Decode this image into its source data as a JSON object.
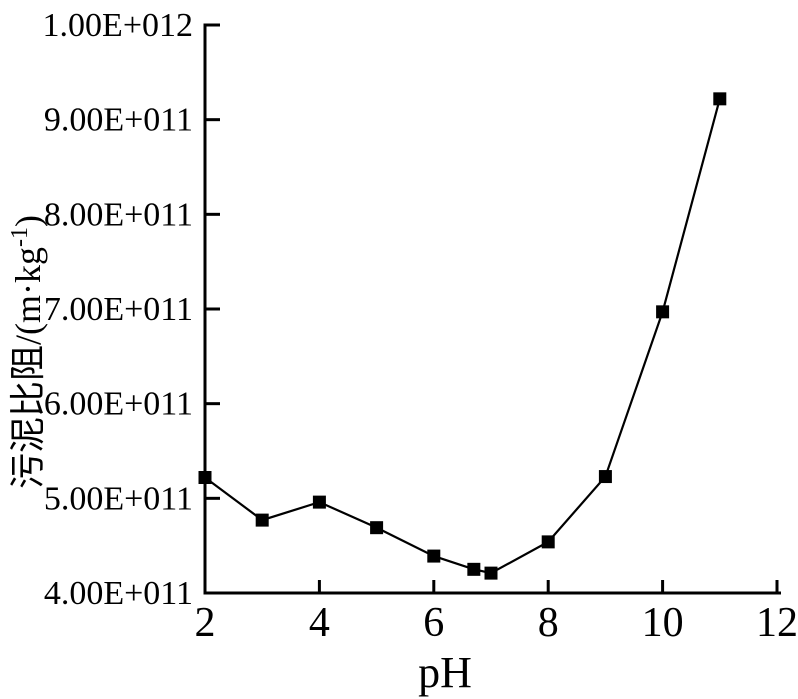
{
  "page": {
    "background": "#ffffff"
  },
  "chart": {
    "ink": "#000000",
    "ylabel_prefix": "污泥比阻/(m·kg",
    "ylabel_sup": "-1",
    "ylabel_suffix": ")"
  },
  "chart_data": {
    "type": "line",
    "title": "",
    "xlabel": "pH",
    "ylabel": "污泥比阻/(m·kg⁻¹)",
    "series": [
      {
        "name": "污泥比阻",
        "marker": "filled-square",
        "line_color": "#000000",
        "marker_color": "#000000",
        "x": [
          2,
          3,
          4,
          5,
          6,
          6.7,
          7,
          8,
          9,
          10,
          11
        ],
        "y": [
          522000000000.0,
          477000000000.0,
          496000000000.0,
          469000000000.0,
          439000000000.0,
          425000000000.0,
          421000000000.0,
          454000000000.0,
          523000000000.0,
          697000000000.0,
          922000000000.0
        ]
      }
    ],
    "xlim": [
      2,
      12
    ],
    "ylim": [
      400000000000.0,
      1000000000000.0
    ],
    "x_ticks": [
      2,
      4,
      6,
      8,
      10,
      12
    ],
    "x_tick_labels": [
      "2",
      "4",
      "6",
      "8",
      "10",
      "12"
    ],
    "y_ticks": [
      400000000000.0,
      500000000000.0,
      600000000000.0,
      700000000000.0,
      800000000000.0,
      900000000000.0,
      1000000000000.0
    ],
    "y_tick_labels": [
      "4.00E+011",
      "5.00E+011",
      "6.00E+011",
      "7.00E+011",
      "8.00E+011",
      "9.00E+011",
      "1.00E+012"
    ],
    "grid": false,
    "legend": null
  }
}
